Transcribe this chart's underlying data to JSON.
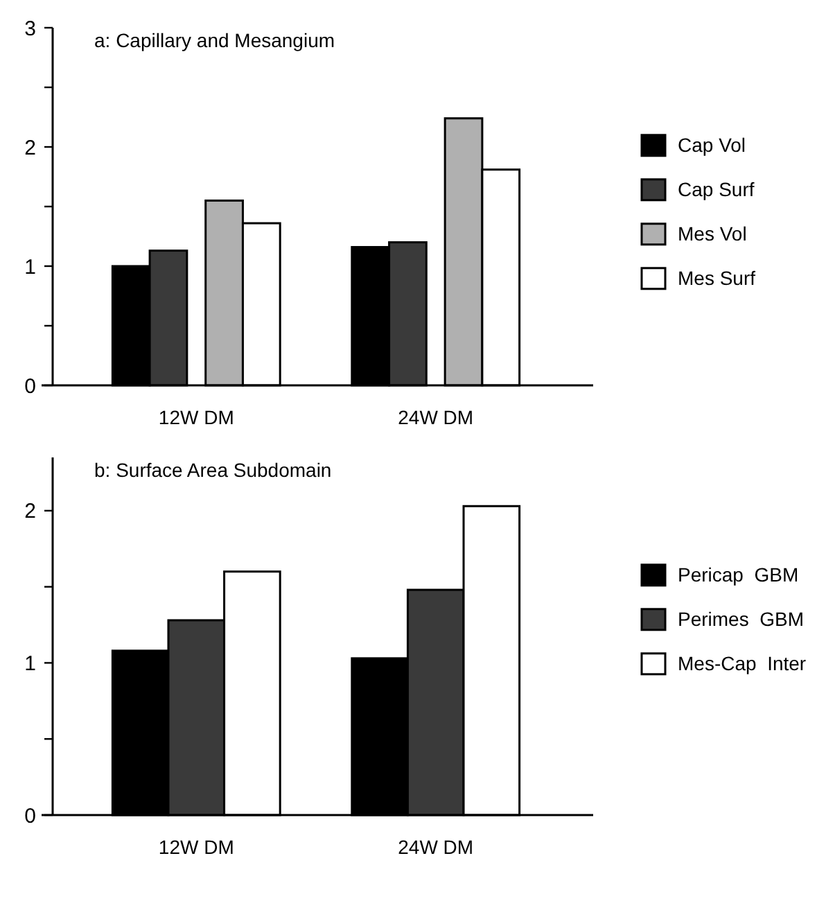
{
  "chart_data": [
    {
      "type": "bar",
      "title": "a: Capillary and Mesangium",
      "categories": [
        "12W DM",
        "24W DM"
      ],
      "series": [
        {
          "name": "Cap Vol",
          "color": "#000000",
          "values": [
            1.0,
            1.16
          ]
        },
        {
          "name": "Cap Surf",
          "color": "#3a3a3a",
          "values": [
            1.13,
            1.2
          ]
        },
        {
          "name": "Mes Vol",
          "color": "#b0b0b0",
          "values": [
            1.55,
            2.24
          ]
        },
        {
          "name": "Mes Surf",
          "color": "#ffffff",
          "values": [
            1.36,
            1.81
          ]
        }
      ],
      "ylim": [
        0,
        3
      ],
      "yticks": [
        0,
        {
          "value": 0.5,
          "label": null
        },
        1,
        {
          "value": 1.5,
          "label": null
        },
        2,
        {
          "value": 2.5,
          "label": null
        },
        3
      ],
      "legend": "right"
    },
    {
      "type": "bar",
      "title": "b: Surface Area Subdomain",
      "categories": [
        "12W DM",
        "24W DM"
      ],
      "series": [
        {
          "name": "Pericap  GBM",
          "color": "#000000",
          "values": [
            1.08,
            1.03
          ]
        },
        {
          "name": "Perimes  GBM",
          "color": "#3a3a3a",
          "values": [
            1.28,
            1.48
          ]
        },
        {
          "name": "Mes-Cap  Inter",
          "color": "#ffffff",
          "values": [
            1.6,
            2.03
          ]
        }
      ],
      "ylim": [
        0,
        2.35
      ],
      "yticks": [
        0,
        {
          "value": 0.5,
          "label": null
        },
        1,
        {
          "value": 1.5,
          "label": null
        },
        2
      ],
      "legend": "right"
    }
  ]
}
